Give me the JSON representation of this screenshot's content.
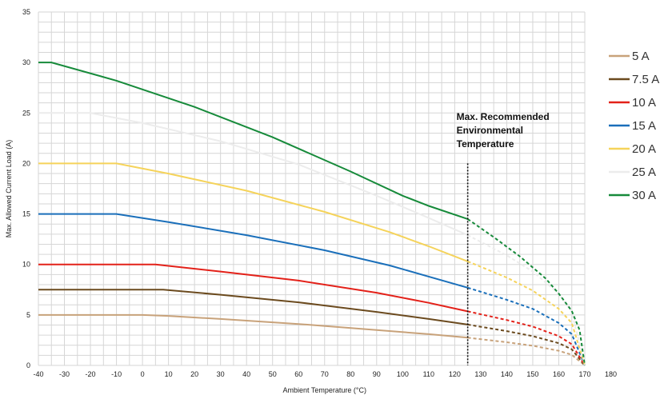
{
  "chart_data": {
    "type": "line",
    "xlabel": "Ambient Temperature (°C)",
    "ylabel": "Max. Allowed Current Load (A)",
    "xlim": [
      -40,
      180
    ],
    "ylim": [
      0,
      35
    ],
    "x_ticks": [
      -40,
      -30,
      -20,
      -10,
      0,
      10,
      20,
      30,
      40,
      50,
      60,
      70,
      80,
      90,
      100,
      110,
      120,
      130,
      140,
      150,
      160,
      170,
      180
    ],
    "y_ticks": [
      0,
      5,
      10,
      15,
      20,
      25,
      30,
      35
    ],
    "grid": true,
    "legend_position": "right",
    "annotation": {
      "lines": [
        "Max. Recommended",
        "Environmental",
        "Temperature"
      ],
      "x": 125
    },
    "series": [
      {
        "name": "5 A",
        "color": "#c8a27a",
        "points": [
          [
            -40,
            5
          ],
          [
            0,
            5
          ],
          [
            10,
            4.9
          ],
          [
            30,
            4.6
          ],
          [
            60,
            4.1
          ],
          [
            90,
            3.5
          ],
          [
            110,
            3.1
          ],
          [
            125,
            2.75
          ],
          [
            140,
            2.3
          ],
          [
            150,
            1.95
          ],
          [
            160,
            1.45
          ],
          [
            165,
            1.05
          ],
          [
            170,
            0
          ]
        ]
      },
      {
        "name": "7.5 A",
        "color": "#6b4a1e",
        "points": [
          [
            -40,
            7.5
          ],
          [
            8,
            7.5
          ],
          [
            30,
            7.0
          ],
          [
            60,
            6.25
          ],
          [
            90,
            5.3
          ],
          [
            110,
            4.6
          ],
          [
            125,
            4.05
          ],
          [
            140,
            3.4
          ],
          [
            150,
            2.9
          ],
          [
            160,
            2.2
          ],
          [
            165,
            1.6
          ],
          [
            170,
            0
          ]
        ]
      },
      {
        "name": "10 A",
        "color": "#e32119",
        "points": [
          [
            -40,
            10
          ],
          [
            5,
            10
          ],
          [
            30,
            9.3
          ],
          [
            60,
            8.4
          ],
          [
            90,
            7.2
          ],
          [
            110,
            6.2
          ],
          [
            125,
            5.35
          ],
          [
            140,
            4.5
          ],
          [
            150,
            3.85
          ],
          [
            160,
            2.9
          ],
          [
            165,
            2.1
          ],
          [
            170,
            0
          ]
        ]
      },
      {
        "name": "15 A",
        "color": "#1a6fba",
        "points": [
          [
            -40,
            15
          ],
          [
            -10,
            15
          ],
          [
            10,
            14.2
          ],
          [
            40,
            12.9
          ],
          [
            70,
            11.4
          ],
          [
            95,
            9.9
          ],
          [
            110,
            8.8
          ],
          [
            125,
            7.7
          ],
          [
            140,
            6.5
          ],
          [
            150,
            5.6
          ],
          [
            160,
            4.2
          ],
          [
            165,
            3.1
          ],
          [
            170,
            0
          ]
        ]
      },
      {
        "name": "20 A",
        "color": "#f5d35a",
        "points": [
          [
            -40,
            20
          ],
          [
            -10,
            20
          ],
          [
            10,
            19
          ],
          [
            40,
            17.3
          ],
          [
            70,
            15.2
          ],
          [
            95,
            13.2
          ],
          [
            110,
            11.8
          ],
          [
            125,
            10.3
          ],
          [
            140,
            8.7
          ],
          [
            150,
            7.4
          ],
          [
            160,
            5.6
          ],
          [
            165,
            4.2
          ],
          [
            170,
            0
          ]
        ]
      },
      {
        "name": "25 A",
        "color": "#ececec",
        "points": [
          [
            -40,
            25
          ],
          [
            -20,
            25
          ],
          [
            0,
            24
          ],
          [
            30,
            22.2
          ],
          [
            60,
            19.9
          ],
          [
            90,
            16.8
          ],
          [
            110,
            14.6
          ],
          [
            125,
            12.9
          ],
          [
            140,
            10.9
          ],
          [
            150,
            9.3
          ],
          [
            160,
            7.1
          ],
          [
            165,
            5.3
          ],
          [
            170,
            0
          ]
        ]
      },
      {
        "name": "30 A",
        "color": "#168a3a",
        "points": [
          [
            -40,
            30
          ],
          [
            -35,
            30
          ],
          [
            -10,
            28.2
          ],
          [
            20,
            25.6
          ],
          [
            50,
            22.6
          ],
          [
            80,
            19.2
          ],
          [
            100,
            16.8
          ],
          [
            110,
            15.8
          ],
          [
            125,
            14.5
          ],
          [
            135,
            12.7
          ],
          [
            145,
            10.8
          ],
          [
            155,
            8.6
          ],
          [
            160,
            7.1
          ],
          [
            165,
            5.4
          ],
          [
            168,
            3.5
          ],
          [
            170,
            0
          ]
        ]
      }
    ]
  }
}
